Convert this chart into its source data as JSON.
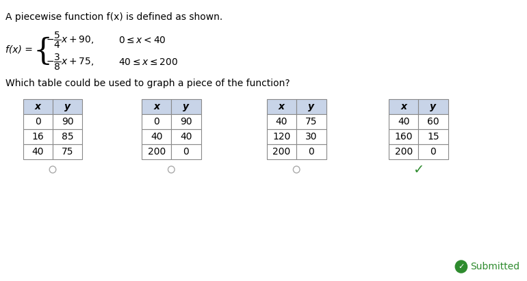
{
  "title_text": "A piecewise function f(x) is defined as shown.",
  "fx_label": "f(x) = ",
  "piece1_text": "-⁵⁄₄x + 90,  0 ≤ x < 40",
  "piece2_text": "-³⁄₈x + 75,  40 ≤ x ≤ 200",
  "question": "Which table could be used to graph a piece of the function?",
  "tables": [
    {
      "headers": [
        "x",
        "y"
      ],
      "rows": [
        [
          "0",
          "90"
        ],
        [
          "16",
          "85"
        ],
        [
          "40",
          "75"
        ]
      ],
      "selected": false
    },
    {
      "headers": [
        "x",
        "y"
      ],
      "rows": [
        [
          "0",
          "90"
        ],
        [
          "40",
          "40"
        ],
        [
          "200",
          "0"
        ]
      ],
      "selected": false
    },
    {
      "headers": [
        "x",
        "y"
      ],
      "rows": [
        [
          "40",
          "75"
        ],
        [
          "120",
          "30"
        ],
        [
          "200",
          "0"
        ]
      ],
      "selected": false
    },
    {
      "headers": [
        "x",
        "y"
      ],
      "rows": [
        [
          "40",
          "60"
        ],
        [
          "160",
          "15"
        ],
        [
          "200",
          "0"
        ]
      ],
      "selected": true
    }
  ],
  "bg_color": "#ffffff",
  "table_header_bg": "#c8d4e8",
  "table_border": "#888888",
  "text_color": "#000000",
  "radio_color": "#aaaaaa",
  "check_color": "#2e8b2e",
  "submitted_color": "#2e8b2e",
  "submitted_text": "Submitted"
}
